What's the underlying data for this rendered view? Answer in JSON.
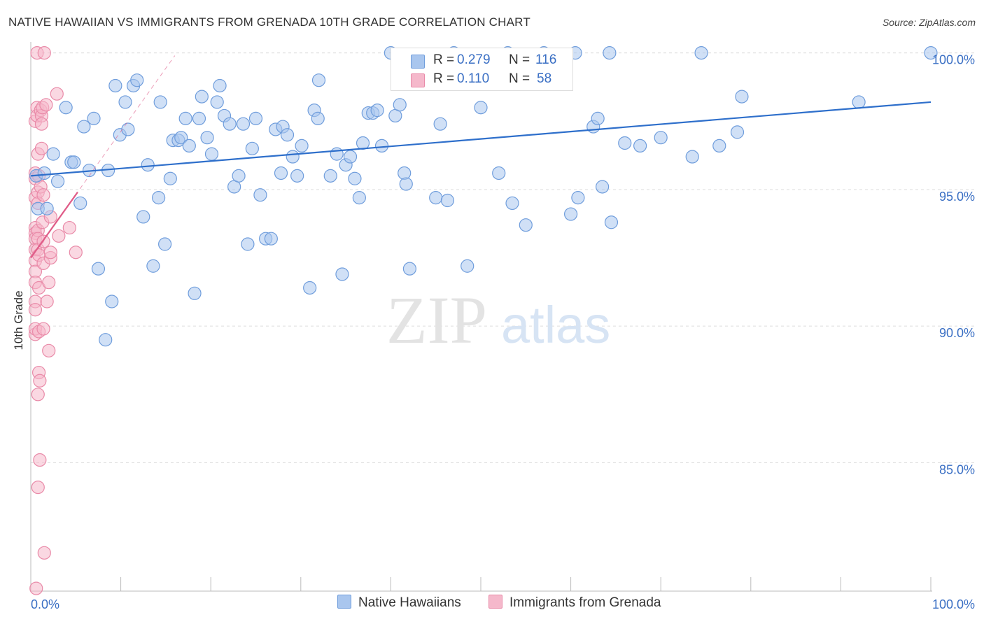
{
  "title": "NATIVE HAWAIIAN VS IMMIGRANTS FROM GRENADA 10TH GRADE CORRELATION CHART",
  "source": "Source: ZipAtlas.com",
  "watermark": {
    "zip": "ZIP",
    "atlas": "atlas"
  },
  "legend": {
    "r_label": "R =",
    "n_label": "N =",
    "series": [
      {
        "r": "0.279",
        "n": "116"
      },
      {
        "r": "0.110",
        "n": "58"
      }
    ]
  },
  "colors": {
    "blue_fill": "#a9c6ee",
    "blue_stroke": "#6f9ddc",
    "blue_line": "#2e6fcb",
    "pink_fill": "#f5b8cb",
    "pink_stroke": "#e98aa8",
    "pink_line": "#e05c88",
    "axis_text": "#3a6fc4",
    "grid": "#dddddd"
  },
  "chart_data": {
    "type": "scatter",
    "title": "NATIVE HAWAIIAN VS IMMIGRANTS FROM GRENADA 10TH GRADE CORRELATION CHART",
    "xlabel": "",
    "ylabel": "10th Grade",
    "xlim": [
      0,
      100
    ],
    "ylim": [
      80.3,
      100.4
    ],
    "x_tick_labels": [
      "0.0%",
      "100.0%"
    ],
    "y_ticks": [
      85,
      90,
      95,
      100
    ],
    "y_tick_labels": [
      "85.0%",
      "90.0%",
      "95.0%",
      "100.0%"
    ],
    "series": [
      {
        "name": "Native Hawaiians",
        "color": "blue",
        "r": 0.279,
        "n": 116,
        "trend": {
          "x": [
            0,
            100
          ],
          "y": [
            95.5,
            98.2
          ],
          "style": "solid"
        },
        "points": [
          [
            0.6,
            95.5
          ],
          [
            0.8,
            94.3
          ],
          [
            1.5,
            95.6
          ],
          [
            1.8,
            94.3
          ],
          [
            2.5,
            96.3
          ],
          [
            3.0,
            95.3
          ],
          [
            3.9,
            98.0
          ],
          [
            4.5,
            96.0
          ],
          [
            4.8,
            96.0
          ],
          [
            5.5,
            94.5
          ],
          [
            5.9,
            97.3
          ],
          [
            6.5,
            95.7
          ],
          [
            7.0,
            97.6
          ],
          [
            7.5,
            92.1
          ],
          [
            8.3,
            89.5
          ],
          [
            8.6,
            95.7
          ],
          [
            9.0,
            90.9
          ],
          [
            9.4,
            98.8
          ],
          [
            9.9,
            97.0
          ],
          [
            10.5,
            98.2
          ],
          [
            10.8,
            97.2
          ],
          [
            11.4,
            98.8
          ],
          [
            11.8,
            99.0
          ],
          [
            12.5,
            94.0
          ],
          [
            13.0,
            95.9
          ],
          [
            13.6,
            92.2
          ],
          [
            14.2,
            94.7
          ],
          [
            14.4,
            98.2
          ],
          [
            14.9,
            93.0
          ],
          [
            15.5,
            95.4
          ],
          [
            15.8,
            96.8
          ],
          [
            16.4,
            96.8
          ],
          [
            16.7,
            96.9
          ],
          [
            17.2,
            97.6
          ],
          [
            17.6,
            96.6
          ],
          [
            18.2,
            91.2
          ],
          [
            18.7,
            97.6
          ],
          [
            19.0,
            98.4
          ],
          [
            19.6,
            96.9
          ],
          [
            20.1,
            96.3
          ],
          [
            20.7,
            98.2
          ],
          [
            21.0,
            98.8
          ],
          [
            21.5,
            97.7
          ],
          [
            22.1,
            97.4
          ],
          [
            22.6,
            95.1
          ],
          [
            23.1,
            95.5
          ],
          [
            23.6,
            97.4
          ],
          [
            24.1,
            93.0
          ],
          [
            24.6,
            96.5
          ],
          [
            25.0,
            97.6
          ],
          [
            25.5,
            94.8
          ],
          [
            26.1,
            93.2
          ],
          [
            26.7,
            93.2
          ],
          [
            27.2,
            97.2
          ],
          [
            27.8,
            95.6
          ],
          [
            28.0,
            97.3
          ],
          [
            28.5,
            97.0
          ],
          [
            29.1,
            96.2
          ],
          [
            29.6,
            95.5
          ],
          [
            30.1,
            96.6
          ],
          [
            31.0,
            91.4
          ],
          [
            31.5,
            97.9
          ],
          [
            31.9,
            97.6
          ],
          [
            32.0,
            99.0
          ],
          [
            33.3,
            95.5
          ],
          [
            34.0,
            96.3
          ],
          [
            34.6,
            91.9
          ],
          [
            35.0,
            95.9
          ],
          [
            35.5,
            96.2
          ],
          [
            36.0,
            95.4
          ],
          [
            36.5,
            94.7
          ],
          [
            36.9,
            96.7
          ],
          [
            37.5,
            97.8
          ],
          [
            38.0,
            97.8
          ],
          [
            38.5,
            97.9
          ],
          [
            39.0,
            96.6
          ],
          [
            40.0,
            100.0
          ],
          [
            40.5,
            97.7
          ],
          [
            41.0,
            98.1
          ],
          [
            41.5,
            95.6
          ],
          [
            41.7,
            95.2
          ],
          [
            42.1,
            92.1
          ],
          [
            43.0,
            99.9
          ],
          [
            45.0,
            94.7
          ],
          [
            45.5,
            97.4
          ],
          [
            46.0,
            99.4
          ],
          [
            46.3,
            94.6
          ],
          [
            47.0,
            100.0
          ],
          [
            48.5,
            92.2
          ],
          [
            50.0,
            98.0
          ],
          [
            52.0,
            95.6
          ],
          [
            53.0,
            100.0
          ],
          [
            53.5,
            94.5
          ],
          [
            55.0,
            93.7
          ],
          [
            57.0,
            100.0
          ],
          [
            58.0,
            99.9
          ],
          [
            60.0,
            94.1
          ],
          [
            60.5,
            100.0
          ],
          [
            60.8,
            94.7
          ],
          [
            62.5,
            97.3
          ],
          [
            63.0,
            97.6
          ],
          [
            63.5,
            95.1
          ],
          [
            64.3,
            100.0
          ],
          [
            64.5,
            93.8
          ],
          [
            66.0,
            96.7
          ],
          [
            67.7,
            96.6
          ],
          [
            70.0,
            96.9
          ],
          [
            73.5,
            96.2
          ],
          [
            74.5,
            100.0
          ],
          [
            76.5,
            96.6
          ],
          [
            78.5,
            97.1
          ],
          [
            79.0,
            98.4
          ],
          [
            92.0,
            98.2
          ],
          [
            100.0,
            100.0
          ]
        ]
      },
      {
        "name": "Immigrants from Grenada",
        "color": "pink",
        "r": 0.11,
        "n": 58,
        "trend": {
          "x": [
            0,
            5.2
          ],
          "y": [
            92.5,
            94.9
          ],
          "style": "solid"
        },
        "trend_extension": {
          "x": [
            0,
            16
          ],
          "y": [
            92.5,
            99.9
          ],
          "style": "dashed"
        },
        "points": [
          [
            0.5,
            97.5
          ],
          [
            0.5,
            95.6
          ],
          [
            0.5,
            95.4
          ],
          [
            0.5,
            94.7
          ],
          [
            0.5,
            93.6
          ],
          [
            0.5,
            93.4
          ],
          [
            0.5,
            93.2
          ],
          [
            0.5,
            92.8
          ],
          [
            0.5,
            92.4
          ],
          [
            0.5,
            92.0
          ],
          [
            0.5,
            91.6
          ],
          [
            0.5,
            90.9
          ],
          [
            0.5,
            90.6
          ],
          [
            0.5,
            89.7
          ],
          [
            0.5,
            89.9
          ],
          [
            0.6,
            80.4
          ],
          [
            0.7,
            100.0
          ],
          [
            0.7,
            98.0
          ],
          [
            0.7,
            97.7
          ],
          [
            0.8,
            96.3
          ],
          [
            0.8,
            94.9
          ],
          [
            0.8,
            94.5
          ],
          [
            0.8,
            93.5
          ],
          [
            0.8,
            93.2
          ],
          [
            0.8,
            92.8
          ],
          [
            0.8,
            87.5
          ],
          [
            0.8,
            84.1
          ],
          [
            0.9,
            95.5
          ],
          [
            0.9,
            92.6
          ],
          [
            0.9,
            91.4
          ],
          [
            0.9,
            89.8
          ],
          [
            0.9,
            88.3
          ],
          [
            1.0,
            88.0
          ],
          [
            1.0,
            85.1
          ],
          [
            1.1,
            97.9
          ],
          [
            1.1,
            95.1
          ],
          [
            1.2,
            97.7
          ],
          [
            1.2,
            97.4
          ],
          [
            1.2,
            96.5
          ],
          [
            1.3,
            98.0
          ],
          [
            1.3,
            93.8
          ],
          [
            1.4,
            94.8
          ],
          [
            1.4,
            93.1
          ],
          [
            1.4,
            92.3
          ],
          [
            1.4,
            89.9
          ],
          [
            1.5,
            100.0
          ],
          [
            1.5,
            81.7
          ],
          [
            1.7,
            98.1
          ],
          [
            1.8,
            90.9
          ],
          [
            2.0,
            91.6
          ],
          [
            2.0,
            89.1
          ],
          [
            2.2,
            94.0
          ],
          [
            2.2,
            92.5
          ],
          [
            2.2,
            92.7
          ],
          [
            2.9,
            98.5
          ],
          [
            3.1,
            93.3
          ],
          [
            4.3,
            93.6
          ],
          [
            5.0,
            92.7
          ]
        ]
      }
    ]
  }
}
